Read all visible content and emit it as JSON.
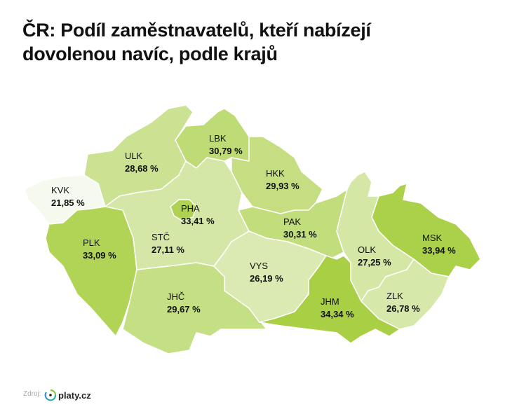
{
  "title_line1": "ČR: Podíl zaměstnavatelů, kteří nabízejí",
  "title_line2": "dovolenou navíc, podle krajů",
  "source_label": "Zdroj:",
  "source_logo_text": "platy.cz",
  "colors": {
    "low": "#f5f9ee",
    "high": "#a9cf45"
  },
  "regions": [
    {
      "code": "KVK",
      "value": 21.85,
      "label": "21,85 %"
    },
    {
      "code": "ULK",
      "value": 28.68,
      "label": "28,68 %"
    },
    {
      "code": "LBK",
      "value": 30.79,
      "label": "30,79 %"
    },
    {
      "code": "HKK",
      "value": 29.93,
      "label": "29,93 %"
    },
    {
      "code": "STČ",
      "value": 27.11,
      "label": "27,11 %"
    },
    {
      "code": "PHA",
      "value": 33.41,
      "label": "33,41 %"
    },
    {
      "code": "PLK",
      "value": 33.09,
      "label": "33,09 %"
    },
    {
      "code": "JHČ",
      "value": 29.67,
      "label": "29,67 %"
    },
    {
      "code": "PAK",
      "value": 30.31,
      "label": "30,31 %"
    },
    {
      "code": "VYS",
      "value": 26.19,
      "label": "26,19 %"
    },
    {
      "code": "JHM",
      "value": 34.34,
      "label": "34,34 %"
    },
    {
      "code": "OLK",
      "value": 27.25,
      "label": "27,25 %"
    },
    {
      "code": "MSK",
      "value": 33.94,
      "label": "33,94 %"
    },
    {
      "code": "ZLK",
      "value": 26.78,
      "label": "26,78 %"
    }
  ]
}
